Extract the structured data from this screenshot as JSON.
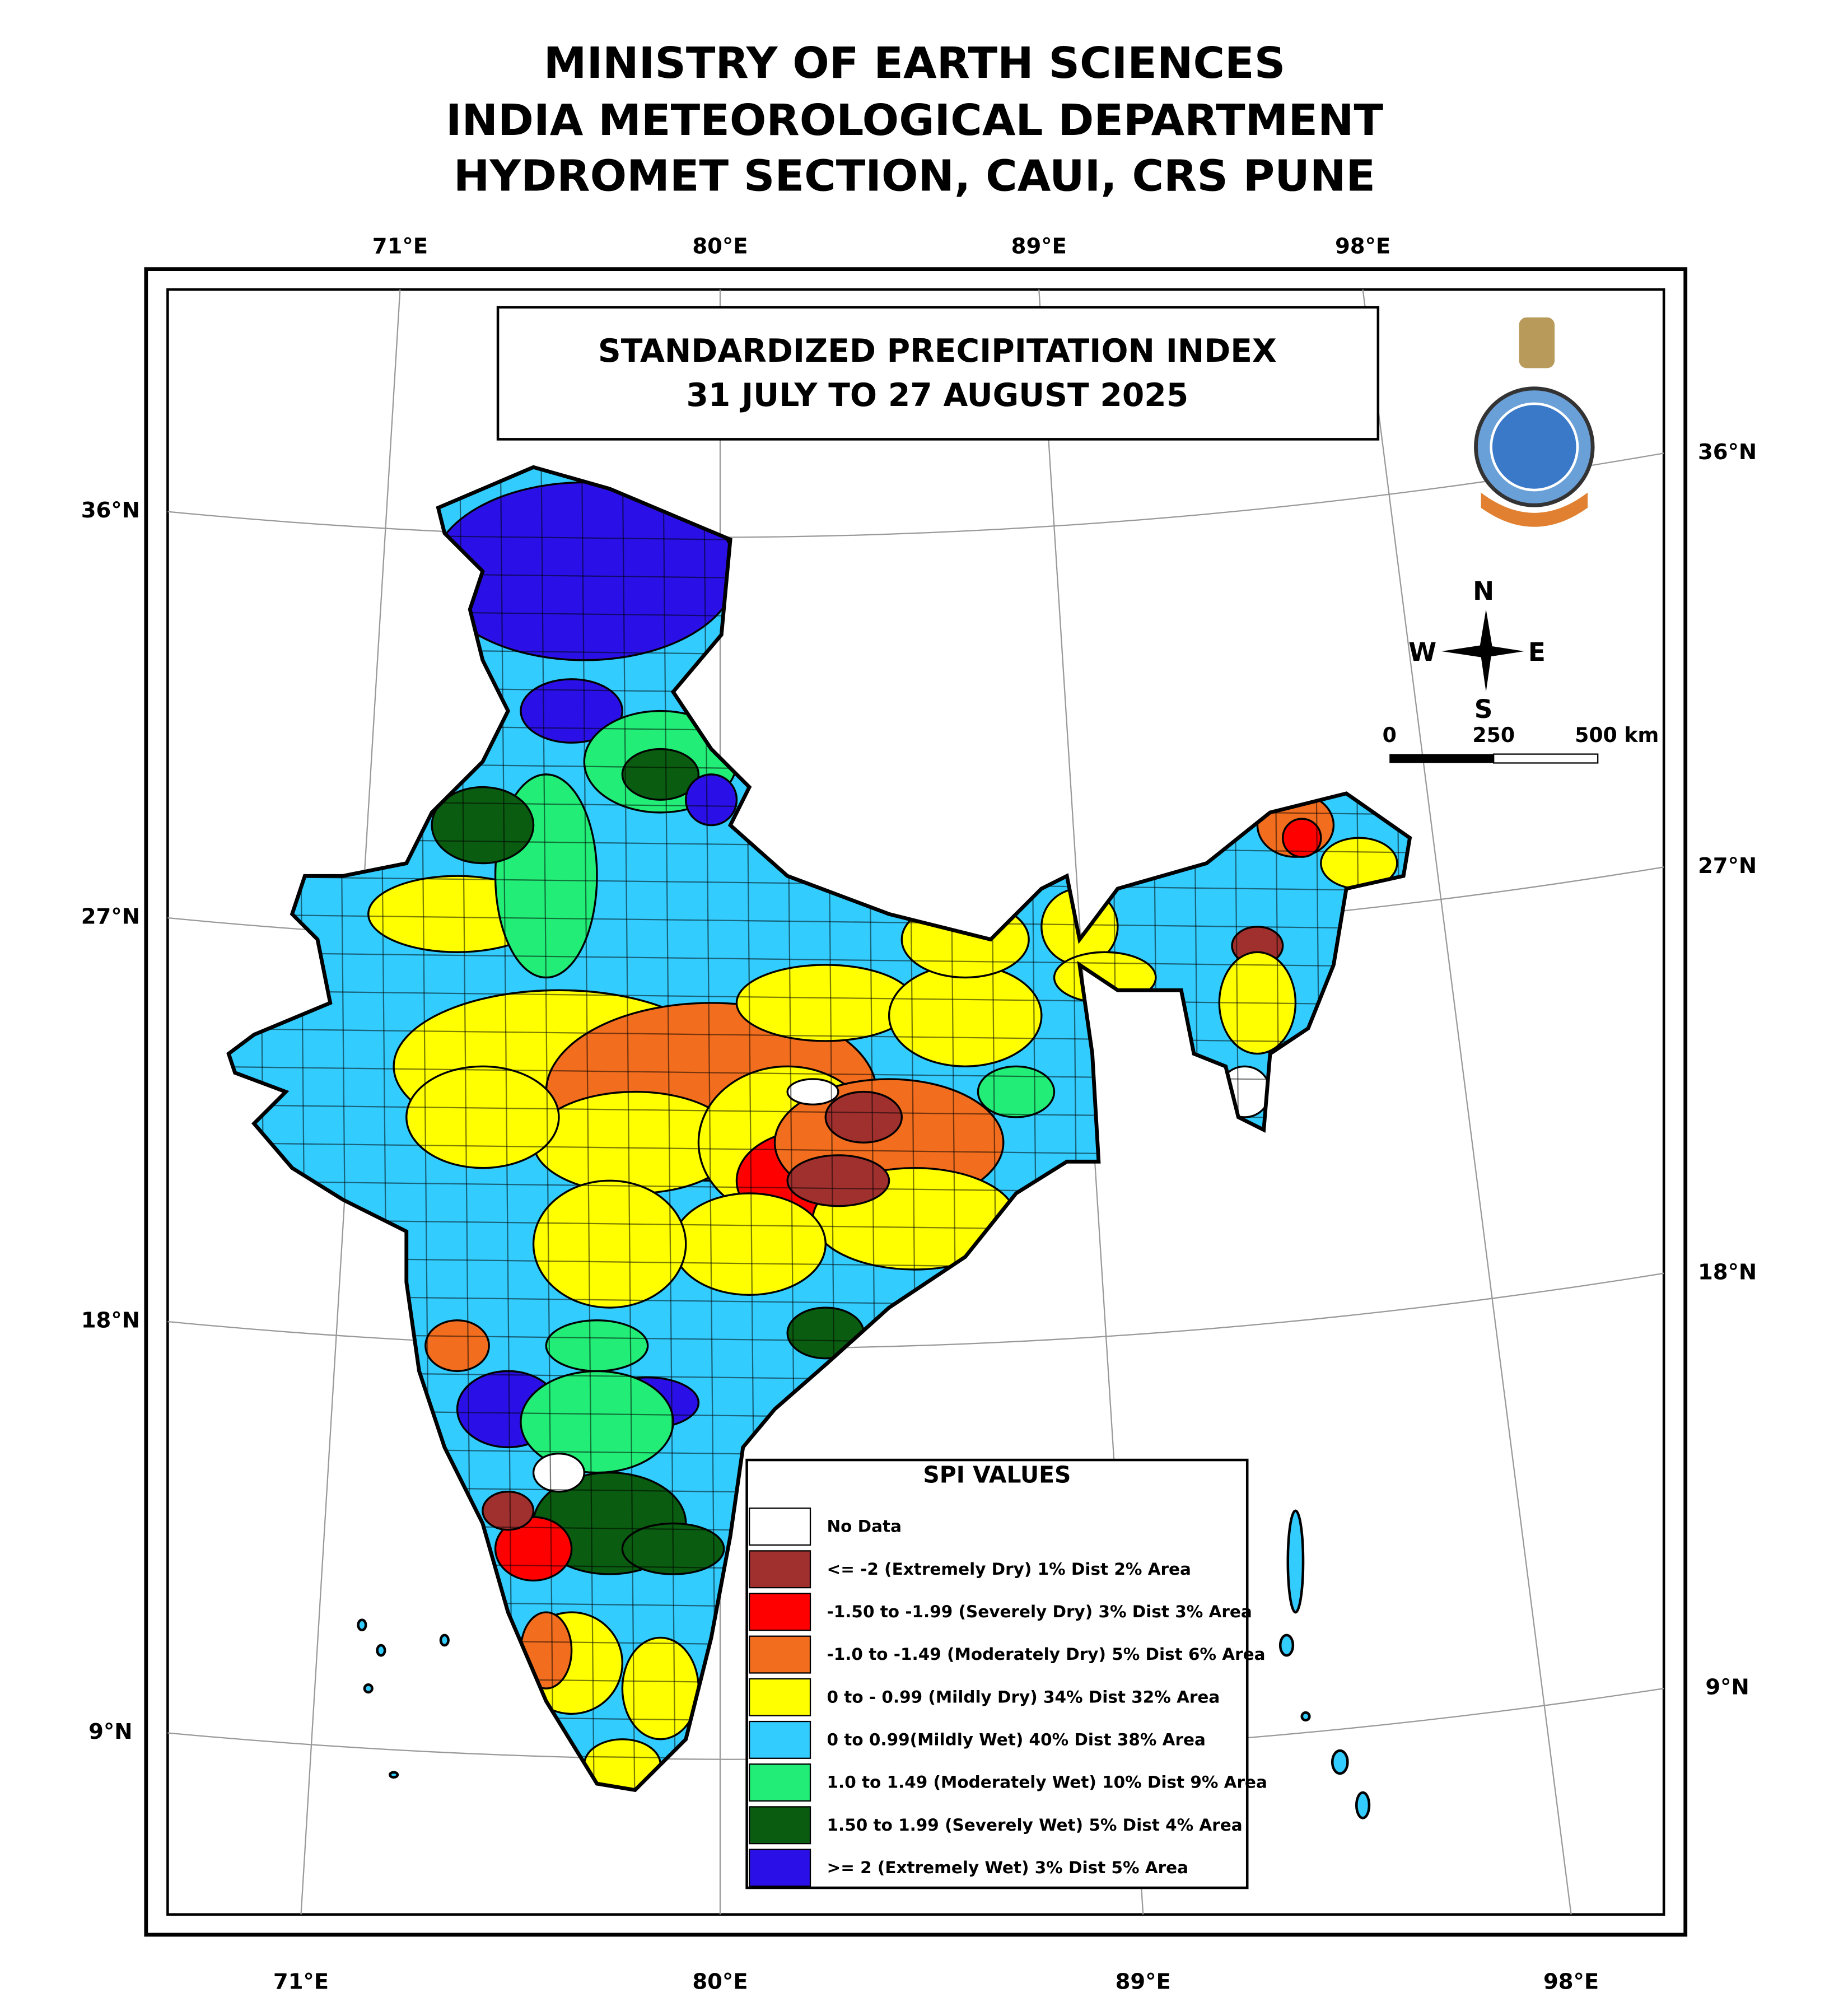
{
  "header": {
    "lines": [
      "MINISTRY OF EARTH SCIENCES",
      "INDIA METEOROLOGICAL DEPARTMENT",
      "HYDROMET SECTION, CAUI, CRS PUNE"
    ]
  },
  "map": {
    "title": [
      "STANDARDIZED PRECIPITATION INDEX",
      "31 JULY TO 27 AUGUST 2025"
    ],
    "graticule": {
      "top": [
        "71°E",
        "80°E",
        "89°E",
        "98°E"
      ],
      "bottom": [
        "71°E",
        "80°E",
        "89°E",
        "98°E"
      ],
      "left": [
        "36°N",
        "27°N",
        "18°N",
        "9°N"
      ],
      "right": [
        "36°N",
        "27°N",
        "18°N",
        "9°N"
      ]
    },
    "compass": {
      "north": "N",
      "east": "E",
      "south": "S",
      "west": "W"
    },
    "scale_bar": [
      "0",
      "250",
      "500 km"
    ]
  },
  "legend": {
    "title": "SPI VALUES",
    "entries": [
      {
        "label": "No Data",
        "color": "#ffffff"
      },
      {
        "label": "<= -2 (Extremely Dry)   1% Dist   2% Area",
        "color": "#a0302e"
      },
      {
        "label": "-1.50 to -1.99 (Severely Dry)  3% Dist   3% Area",
        "color": "#ff0000"
      },
      {
        "label": "-1.0 to -1.49 (Moderately Dry)  5% Dist   6% Area",
        "color": "#f26d1e"
      },
      {
        "label": "0 to - 0.99 (Mildly Dry)   34% Dist  32% Area",
        "color": "#ffff00"
      },
      {
        "label": "0 to  0.99(Mildly Wet)  40% Dist  38% Area",
        "color": "#33ccff"
      },
      {
        "label": "1.0 to 1.49 (Moderately Wet)  10% Dist  9% Area",
        "color": "#22ee77"
      },
      {
        "label": "1.50 to 1.99 (Severely Wet)  5% Dist  4% Area",
        "color": "#0a5c10"
      },
      {
        "label": ">= 2 (Extremely Wet)  3% Dist   5% Area",
        "color": "#2a10e6"
      }
    ]
  }
}
